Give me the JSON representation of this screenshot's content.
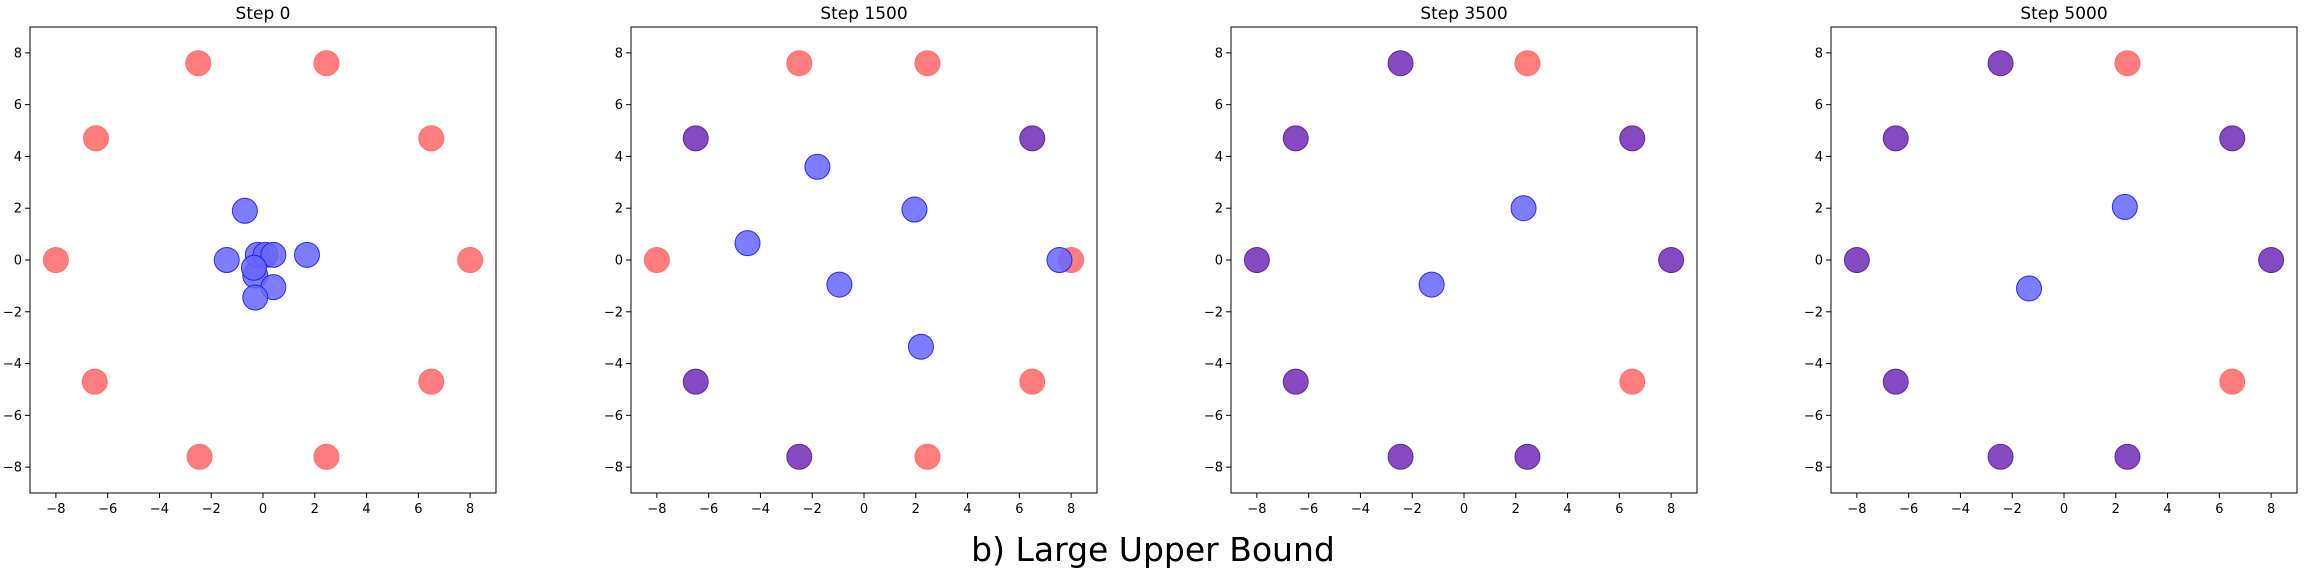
{
  "caption": "b) Large Upper Bound",
  "colors": {
    "target": "#ff6666",
    "agent": "#6666ff",
    "agent_edge": "#1a1aff",
    "covered": "#7f3fbf",
    "covered_edge": "#5a1f9a"
  },
  "chart_data": [
    {
      "type": "scatter",
      "title": "Step 0",
      "xlim": [
        -9,
        9
      ],
      "ylim": [
        -9,
        9
      ],
      "xticks": [
        -8,
        -6,
        -4,
        -2,
        0,
        2,
        4,
        6,
        8
      ],
      "yticks": [
        -8,
        -6,
        -4,
        -2,
        0,
        2,
        4,
        6,
        8
      ],
      "grid": false,
      "series": [
        {
          "kind": "target",
          "points": [
            [
              -2.5,
              7.6
            ],
            [
              2.45,
              7.6
            ],
            [
              -6.45,
              4.7
            ],
            [
              6.5,
              4.7
            ],
            [
              -8,
              0
            ],
            [
              8,
              0
            ],
            [
              -6.5,
              -4.7
            ],
            [
              6.5,
              -4.7
            ],
            [
              -2.45,
              -7.6
            ],
            [
              2.45,
              -7.6
            ]
          ]
        },
        {
          "kind": "agent",
          "points": [
            [
              -0.7,
              1.9
            ],
            [
              -1.4,
              0
            ],
            [
              -0.3,
              -0.6
            ],
            [
              -0.2,
              0.2
            ],
            [
              0.1,
              0.2
            ],
            [
              0.4,
              0.2
            ],
            [
              1.7,
              0.2
            ],
            [
              -0.35,
              -0.3
            ],
            [
              0.4,
              -1.05
            ],
            [
              -0.3,
              -1.45
            ]
          ]
        }
      ]
    },
    {
      "type": "scatter",
      "title": "Step 1500",
      "xlim": [
        -9,
        9
      ],
      "ylim": [
        -9,
        9
      ],
      "xticks": [
        -8,
        -6,
        -4,
        -2,
        0,
        2,
        4,
        6,
        8
      ],
      "yticks": [
        -8,
        -6,
        -4,
        -2,
        0,
        2,
        4,
        6,
        8
      ],
      "grid": false,
      "series": [
        {
          "kind": "target",
          "points": [
            [
              -2.5,
              7.6
            ],
            [
              2.45,
              7.6
            ],
            [
              -8,
              0
            ],
            [
              8,
              0
            ],
            [
              6.5,
              -4.7
            ],
            [
              2.45,
              -7.6
            ]
          ]
        },
        {
          "kind": "covered",
          "points": [
            [
              -6.5,
              4.7
            ],
            [
              6.5,
              4.7
            ],
            [
              -6.5,
              -4.7
            ],
            [
              -2.5,
              -7.6
            ]
          ]
        },
        {
          "kind": "agent",
          "points": [
            [
              -1.8,
              3.6
            ],
            [
              1.95,
              1.95
            ],
            [
              -4.5,
              0.65
            ],
            [
              -0.95,
              -0.95
            ],
            [
              2.2,
              -3.35
            ],
            [
              7.55,
              0
            ]
          ]
        }
      ]
    },
    {
      "type": "scatter",
      "title": "Step 3500",
      "xlim": [
        -9,
        9
      ],
      "ylim": [
        -9,
        9
      ],
      "xticks": [
        -8,
        -6,
        -4,
        -2,
        0,
        2,
        4,
        6,
        8
      ],
      "yticks": [
        -8,
        -6,
        -4,
        -2,
        0,
        2,
        4,
        6,
        8
      ],
      "grid": false,
      "series": [
        {
          "kind": "target",
          "points": [
            [
              2.45,
              7.6
            ],
            [
              6.5,
              -4.7
            ]
          ]
        },
        {
          "kind": "covered",
          "points": [
            [
              -2.45,
              7.6
            ],
            [
              -6.5,
              4.7
            ],
            [
              6.5,
              4.7
            ],
            [
              -8,
              0
            ],
            [
              8,
              0
            ],
            [
              -6.5,
              -4.7
            ],
            [
              -2.45,
              -7.6
            ],
            [
              2.45,
              -7.6
            ]
          ]
        },
        {
          "kind": "agent",
          "points": [
            [
              2.3,
              2
            ],
            [
              -1.25,
              -0.95
            ]
          ]
        }
      ]
    },
    {
      "type": "scatter",
      "title": "Step 5000",
      "xlim": [
        -9,
        9
      ],
      "ylim": [
        -9,
        9
      ],
      "xticks": [
        -8,
        -6,
        -4,
        -2,
        0,
        2,
        4,
        6,
        8
      ],
      "yticks": [
        -8,
        -6,
        -4,
        -2,
        0,
        2,
        4,
        6,
        8
      ],
      "grid": false,
      "series": [
        {
          "kind": "target",
          "points": [
            [
              2.45,
              7.6
            ],
            [
              6.5,
              -4.7
            ]
          ]
        },
        {
          "kind": "covered",
          "points": [
            [
              -2.45,
              7.6
            ],
            [
              -6.5,
              4.7
            ],
            [
              6.5,
              4.7
            ],
            [
              -8,
              0
            ],
            [
              8,
              0
            ],
            [
              -6.5,
              -4.7
            ],
            [
              -2.45,
              -7.6
            ],
            [
              2.45,
              -7.6
            ]
          ]
        },
        {
          "kind": "agent",
          "points": [
            [
              2.35,
              2.05
            ],
            [
              -1.35,
              -1.1
            ]
          ]
        }
      ]
    }
  ]
}
